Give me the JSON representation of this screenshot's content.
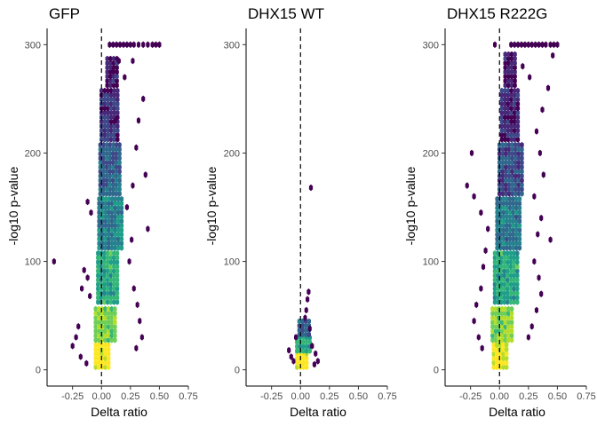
{
  "chart_data": [
    {
      "type": "heatmap",
      "subtype": "hexbin volcano",
      "title": "GFP",
      "xlabel": "Delta ratio",
      "ylabel": "-log10 p-value",
      "xlim": [
        -0.47,
        0.75
      ],
      "ylim": [
        -15,
        315
      ],
      "xticks": [
        -0.25,
        0.0,
        0.25,
        0.5,
        0.75
      ],
      "xtick_labels": [
        "-0.25",
        "0.00",
        "0.25",
        "0.50",
        "0.75"
      ],
      "yticks": [
        0,
        100,
        200,
        300
      ],
      "ytick_labels": [
        "0",
        "100",
        "200",
        "300"
      ],
      "reference_line": {
        "x": 0,
        "style": "dashed"
      },
      "grid": false,
      "color_scale": "viridis",
      "density_bins": [
        {
          "x": [
            -0.05,
            0.08
          ],
          "y": [
            0,
            25
          ],
          "level": 1.0
        },
        {
          "x": [
            -0.05,
            0.12
          ],
          "y": [
            25,
            60
          ],
          "level": 0.8
        },
        {
          "x": [
            -0.03,
            0.16
          ],
          "y": [
            60,
            110
          ],
          "level": 0.6
        },
        {
          "x": [
            -0.02,
            0.18
          ],
          "y": [
            110,
            160
          ],
          "level": 0.45
        },
        {
          "x": [
            -0.01,
            0.17
          ],
          "y": [
            160,
            210
          ],
          "level": 0.3
        },
        {
          "x": [
            0.0,
            0.15
          ],
          "y": [
            210,
            260
          ],
          "level": 0.15
        },
        {
          "x": [
            0.05,
            0.14
          ],
          "y": [
            260,
            290
          ],
          "level": 0.08
        }
      ],
      "sparse_points": [
        [
          -0.41,
          100
        ],
        [
          -0.15,
          92
        ],
        [
          -0.12,
          85
        ],
        [
          -0.17,
          75
        ],
        [
          -0.1,
          68
        ],
        [
          -0.2,
          40
        ],
        [
          -0.22,
          30
        ],
        [
          -0.25,
          22
        ],
        [
          -0.18,
          12
        ],
        [
          -0.13,
          6
        ],
        [
          0.24,
          100
        ],
        [
          0.28,
          75
        ],
        [
          0.31,
          60
        ],
        [
          0.33,
          45
        ],
        [
          0.35,
          30
        ],
        [
          0.3,
          20
        ],
        [
          0.26,
          120
        ],
        [
          0.22,
          150
        ],
        [
          0.27,
          170
        ],
        [
          0.3,
          205
        ],
        [
          0.32,
          230
        ],
        [
          0.36,
          250
        ],
        [
          0.2,
          270
        ],
        [
          0.38,
          180
        ],
        [
          0.4,
          130
        ],
        [
          0.5,
          300
        ],
        [
          0.47,
          300
        ],
        [
          0.44,
          300
        ],
        [
          0.4,
          300
        ],
        [
          0.36,
          300
        ],
        [
          0.32,
          300
        ],
        [
          0.28,
          300
        ],
        [
          0.25,
          300
        ],
        [
          0.22,
          300
        ],
        [
          0.19,
          300
        ],
        [
          0.16,
          300
        ],
        [
          0.13,
          300
        ],
        [
          0.1,
          300
        ],
        [
          0.07,
          300
        ],
        [
          -0.12,
          155
        ],
        [
          -0.09,
          145
        ],
        [
          0.15,
          285
        ],
        [
          0.1,
          275
        ],
        [
          0.27,
          285
        ],
        [
          0.12,
          230
        ]
      ]
    },
    {
      "type": "heatmap",
      "subtype": "hexbin volcano",
      "title": "DHX15  WT",
      "xlabel": "Delta ratio",
      "ylabel": "-log10 p-value",
      "xlim": [
        -0.47,
        0.75
      ],
      "ylim": [
        -15,
        315
      ],
      "xticks": [
        -0.25,
        0.0,
        0.25,
        0.5,
        0.75
      ],
      "xtick_labels": [
        "-0.25",
        "0.00",
        "0.25",
        "0.50",
        "0.75"
      ],
      "yticks": [
        0,
        100,
        200,
        300
      ],
      "ytick_labels": [
        "0",
        "100",
        "200",
        "300"
      ],
      "reference_line": {
        "x": 0,
        "style": "dashed"
      },
      "grid": false,
      "color_scale": "viridis",
      "density_bins": [
        {
          "x": [
            -0.03,
            0.06
          ],
          "y": [
            0,
            15
          ],
          "level": 1.0
        },
        {
          "x": [
            -0.03,
            0.1
          ],
          "y": [
            15,
            30
          ],
          "level": 0.6
        },
        {
          "x": [
            -0.01,
            0.08
          ],
          "y": [
            30,
            45
          ],
          "level": 0.3
        }
      ],
      "sparse_points": [
        [
          0.09,
          168
        ],
        [
          0.07,
          72
        ],
        [
          0.06,
          65
        ],
        [
          0.05,
          55
        ],
        [
          0.04,
          48
        ],
        [
          -0.1,
          18
        ],
        [
          -0.08,
          12
        ],
        [
          -0.06,
          8
        ],
        [
          0.1,
          22
        ],
        [
          0.13,
          15
        ],
        [
          0.15,
          8
        ],
        [
          0.12,
          5
        ],
        [
          -0.04,
          30
        ],
        [
          0.08,
          38
        ]
      ]
    },
    {
      "type": "heatmap",
      "subtype": "hexbin volcano",
      "title": "DHX15  R222G",
      "xlabel": "Delta ratio",
      "ylabel": "-log10 p-value",
      "xlim": [
        -0.47,
        0.75
      ],
      "ylim": [
        -15,
        315
      ],
      "xticks": [
        -0.25,
        0.0,
        0.25,
        0.5,
        0.75
      ],
      "xtick_labels": [
        "-0.25",
        "0.00",
        "0.25",
        "0.50",
        "0.75"
      ],
      "yticks": [
        0,
        100,
        200,
        300
      ],
      "ytick_labels": [
        "0",
        "100",
        "200",
        "300"
      ],
      "reference_line": {
        "x": 0,
        "style": "dashed"
      },
      "grid": false,
      "color_scale": "viridis",
      "density_bins": [
        {
          "x": [
            -0.05,
            0.07
          ],
          "y": [
            0,
            25
          ],
          "level": 1.0
        },
        {
          "x": [
            -0.06,
            0.12
          ],
          "y": [
            25,
            60
          ],
          "level": 0.8
        },
        {
          "x": [
            -0.04,
            0.16
          ],
          "y": [
            60,
            110
          ],
          "level": 0.6
        },
        {
          "x": [
            -0.02,
            0.18
          ],
          "y": [
            110,
            160
          ],
          "level": 0.4
        },
        {
          "x": [
            0.0,
            0.2
          ],
          "y": [
            160,
            210
          ],
          "level": 0.25
        },
        {
          "x": [
            0.02,
            0.18
          ],
          "y": [
            210,
            260
          ],
          "level": 0.12
        },
        {
          "x": [
            0.05,
            0.15
          ],
          "y": [
            260,
            295
          ],
          "level": 0.06
        }
      ],
      "sparse_points": [
        [
          -0.22,
          45
        ],
        [
          -0.18,
          30
        ],
        [
          -0.15,
          20
        ],
        [
          -0.2,
          60
        ],
        [
          -0.16,
          75
        ],
        [
          -0.14,
          95
        ],
        [
          -0.12,
          110
        ],
        [
          -0.1,
          130
        ],
        [
          -0.16,
          145
        ],
        [
          -0.22,
          160
        ],
        [
          -0.28,
          170
        ],
        [
          -0.24,
          200
        ],
        [
          0.3,
          100
        ],
        [
          0.34,
          85
        ],
        [
          0.36,
          70
        ],
        [
          0.32,
          55
        ],
        [
          0.28,
          40
        ],
        [
          0.25,
          30
        ],
        [
          0.33,
          125
        ],
        [
          0.36,
          140
        ],
        [
          0.3,
          160
        ],
        [
          0.38,
          180
        ],
        [
          0.35,
          200
        ],
        [
          0.32,
          220
        ],
        [
          0.37,
          240
        ],
        [
          0.42,
          260
        ],
        [
          0.44,
          120
        ],
        [
          0.5,
          300
        ],
        [
          0.47,
          300
        ],
        [
          0.44,
          300
        ],
        [
          0.4,
          300
        ],
        [
          0.37,
          300
        ],
        [
          0.34,
          300
        ],
        [
          0.31,
          300
        ],
        [
          0.28,
          300
        ],
        [
          0.25,
          300
        ],
        [
          0.22,
          300
        ],
        [
          0.19,
          300
        ],
        [
          0.16,
          300
        ],
        [
          0.13,
          300
        ],
        [
          0.1,
          300
        ],
        [
          -0.04,
          300
        ],
        [
          0.46,
          290
        ],
        [
          0.2,
          280
        ],
        [
          0.26,
          270
        ]
      ]
    }
  ]
}
